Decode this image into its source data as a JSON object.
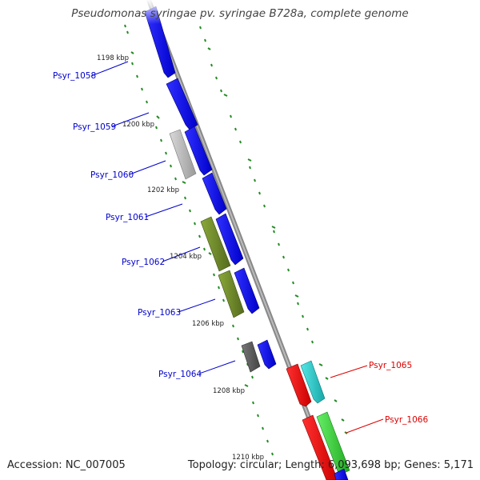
{
  "title": "Pseudomonas syringae pv. syringae B728a, complete genome",
  "footer": {
    "accession": "Accession: NC_007005",
    "summary": "Topology: circular; Length: 6,093,698 bp; Genes: 5,171"
  },
  "colors": {
    "gene_forward": "#0000ee",
    "gene_reverse_cds": "#ee0000",
    "gene_cyan": "#22cccc",
    "gene_green": "#33cc33",
    "gene_olive": "#6b8e23",
    "gene_grey": "#aaaaaa",
    "gene_darkgrey": "#555555",
    "backbone": "#888888",
    "tick": "#228b22",
    "label_forward": "#0000cc",
    "label_reverse": "#dd0000"
  },
  "ruler_labels": [
    "1198 kbp",
    "1200 kbp",
    "1202 kbp",
    "1204 kbp",
    "1206 kbp",
    "1208 kbp",
    "1210 kbp"
  ],
  "gene_labels_left": [
    "Psyr_1058",
    "Psyr_1059",
    "Psyr_1060",
    "Psyr_1061",
    "Psyr_1062",
    "Psyr_1063",
    "Psyr_1064"
  ],
  "gene_labels_right": [
    "Psyr_1065",
    "Psyr_1066"
  ]
}
